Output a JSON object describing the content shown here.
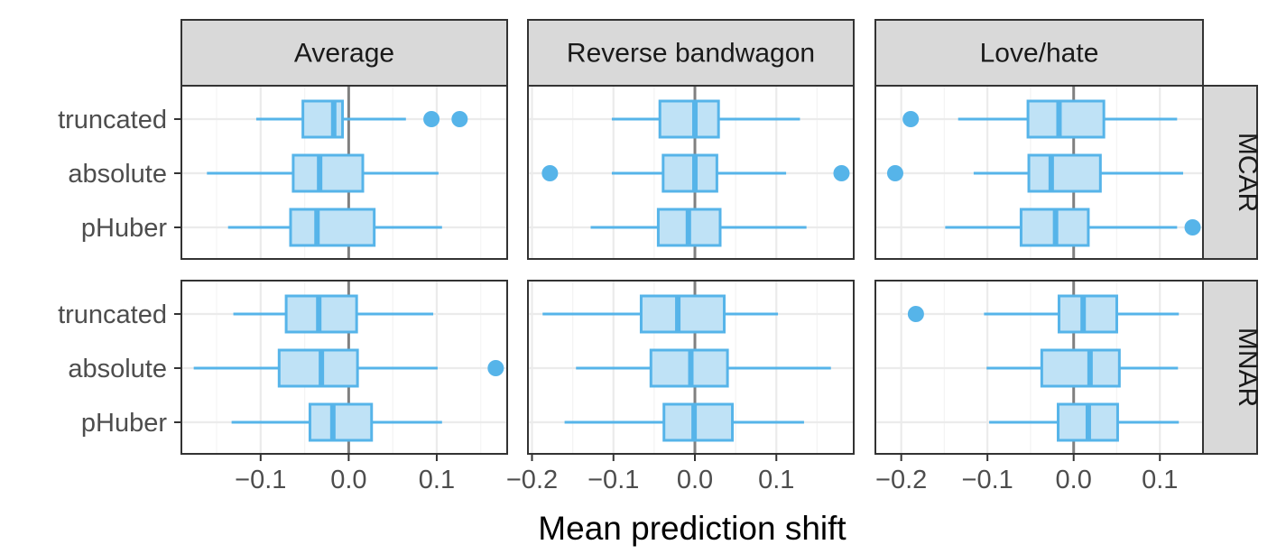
{
  "chart_data": {
    "type": "boxplot",
    "xlabel": "Mean prediction shift",
    "ylabel": "",
    "categories": [
      "truncated",
      "absolute",
      "pHuber"
    ],
    "colors": {
      "box_fill": "#bfe2f6",
      "box_stroke": "#56b4e9",
      "strip_fill": "#d9d9d9",
      "grid": "#ebebeb",
      "zero_line": "#808080"
    },
    "columns": [
      {
        "label": "Average",
        "xlim": [
          -0.19,
          0.18
        ],
        "ticks": [
          -0.1,
          0.0,
          0.1
        ],
        "tick_labels": [
          "−0.1",
          "0.0",
          "0.1"
        ]
      },
      {
        "label": "Reverse bandwagon",
        "xlim": [
          -0.205,
          0.195
        ],
        "ticks": [
          -0.2,
          -0.1,
          0.0,
          0.1
        ],
        "tick_labels": [
          "−0.2",
          "−0.1",
          "0.0",
          "0.1"
        ]
      },
      {
        "label": "Love/hate",
        "xlim": [
          -0.23,
          0.15
        ],
        "ticks": [
          -0.2,
          -0.1,
          0.0,
          0.1
        ],
        "tick_labels": [
          "−0.2",
          "−0.1",
          "0.0",
          "0.1"
        ]
      }
    ],
    "rows": [
      {
        "label": "MCAR"
      },
      {
        "label": "MNAR"
      }
    ],
    "panels": [
      {
        "row": 0,
        "col": 0,
        "boxes": [
          {
            "category": "truncated",
            "whisker_low": -0.105,
            "q1": -0.052,
            "median": -0.017,
            "q3": -0.007,
            "whisker_high": 0.065,
            "outliers": [
              0.094,
              0.126
            ]
          },
          {
            "category": "absolute",
            "whisker_low": -0.161,
            "q1": -0.063,
            "median": -0.033,
            "q3": 0.016,
            "whisker_high": 0.102,
            "outliers": []
          },
          {
            "category": "pHuber",
            "whisker_low": -0.137,
            "q1": -0.066,
            "median": -0.036,
            "q3": 0.029,
            "whisker_high": 0.106,
            "outliers": []
          }
        ]
      },
      {
        "row": 0,
        "col": 1,
        "boxes": [
          {
            "category": "truncated",
            "whisker_low": -0.102,
            "q1": -0.043,
            "median": 0.0,
            "q3": 0.029,
            "whisker_high": 0.129,
            "outliers": []
          },
          {
            "category": "absolute",
            "whisker_low": -0.102,
            "q1": -0.039,
            "median": 0.0,
            "q3": 0.027,
            "whisker_high": 0.112,
            "outliers": [
              -0.178,
              0.18
            ]
          },
          {
            "category": "pHuber",
            "whisker_low": -0.128,
            "q1": -0.045,
            "median": -0.008,
            "q3": 0.031,
            "whisker_high": 0.137,
            "outliers": []
          }
        ]
      },
      {
        "row": 0,
        "col": 2,
        "boxes": [
          {
            "category": "truncated",
            "whisker_low": -0.134,
            "q1": -0.053,
            "median": -0.017,
            "q3": 0.035,
            "whisker_high": 0.12,
            "outliers": [
              -0.189
            ]
          },
          {
            "category": "absolute",
            "whisker_low": -0.116,
            "q1": -0.052,
            "median": -0.026,
            "q3": 0.031,
            "whisker_high": 0.127,
            "outliers": [
              -0.207
            ]
          },
          {
            "category": "pHuber",
            "whisker_low": -0.149,
            "q1": -0.061,
            "median": -0.021,
            "q3": 0.017,
            "whisker_high": 0.12,
            "outliers": [
              0.138
            ]
          }
        ]
      },
      {
        "row": 1,
        "col": 0,
        "boxes": [
          {
            "category": "truncated",
            "whisker_low": -0.131,
            "q1": -0.071,
            "median": -0.034,
            "q3": 0.009,
            "whisker_high": 0.096,
            "outliers": []
          },
          {
            "category": "absolute",
            "whisker_low": -0.176,
            "q1": -0.079,
            "median": -0.031,
            "q3": 0.01,
            "whisker_high": 0.101,
            "outliers": [
              0.167
            ]
          },
          {
            "category": "pHuber",
            "whisker_low": -0.133,
            "q1": -0.044,
            "median": -0.018,
            "q3": 0.026,
            "whisker_high": 0.106,
            "outliers": []
          }
        ]
      },
      {
        "row": 1,
        "col": 1,
        "boxes": [
          {
            "category": "truncated",
            "whisker_low": -0.187,
            "q1": -0.066,
            "median": -0.021,
            "q3": 0.036,
            "whisker_high": 0.102,
            "outliers": []
          },
          {
            "category": "absolute",
            "whisker_low": -0.146,
            "q1": -0.054,
            "median": -0.005,
            "q3": 0.04,
            "whisker_high": 0.167,
            "outliers": []
          },
          {
            "category": "pHuber",
            "whisker_low": -0.16,
            "q1": -0.038,
            "median": -0.001,
            "q3": 0.046,
            "whisker_high": 0.134,
            "outliers": []
          }
        ]
      },
      {
        "row": 1,
        "col": 2,
        "boxes": [
          {
            "category": "truncated",
            "whisker_low": -0.104,
            "q1": -0.017,
            "median": 0.011,
            "q3": 0.05,
            "whisker_high": 0.122,
            "outliers": [
              -0.183
            ]
          },
          {
            "category": "absolute",
            "whisker_low": -0.101,
            "q1": -0.037,
            "median": 0.019,
            "q3": 0.053,
            "whisker_high": 0.121,
            "outliers": []
          },
          {
            "category": "pHuber",
            "whisker_low": -0.098,
            "q1": -0.018,
            "median": 0.017,
            "q3": 0.051,
            "whisker_high": 0.122,
            "outliers": []
          }
        ]
      }
    ]
  }
}
